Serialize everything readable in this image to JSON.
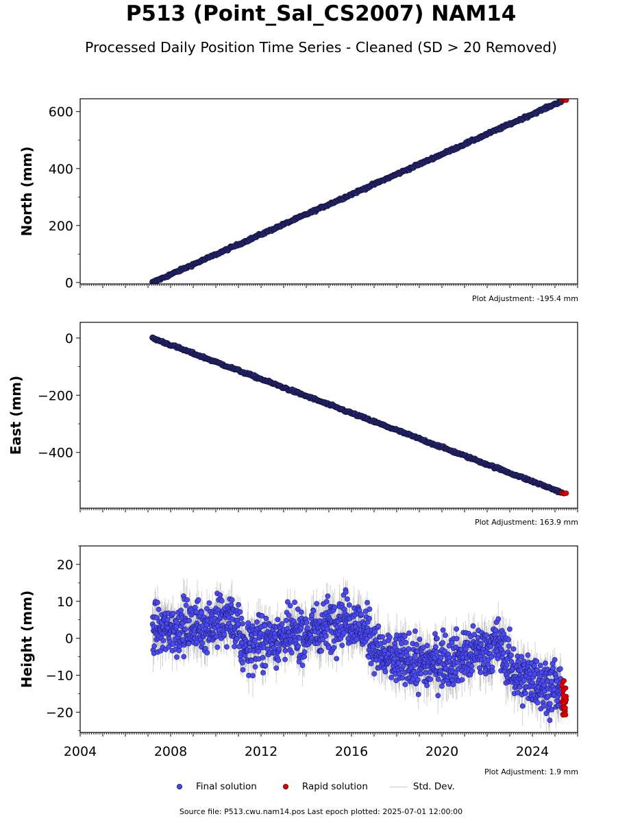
{
  "title": "P513 (Point_Sal_CS2007) NAM14",
  "subtitle": "Processed Daily Position Time Series - Cleaned (SD > 20 Removed)",
  "chart_data": [
    {
      "type": "scatter",
      "ylabel": "North (mm)",
      "xlim": [
        2004.0,
        2026.0
      ],
      "ylim": [
        -5,
        645
      ],
      "y_ticks": [
        0,
        200,
        400,
        600
      ],
      "y_tick_labels": [
        "0",
        "200",
        "400",
        "600"
      ],
      "x_tick_labels_shown": false,
      "adjustment_label": "Plot Adjustment: -195.4 mm",
      "final_solution": {
        "start": [
          2007.2,
          0
        ],
        "end": [
          2025.3,
          637
        ],
        "noise_mm": 2
      },
      "rapid_solution": {
        "x_range": [
          2025.3,
          2025.5
        ],
        "y": 641
      }
    },
    {
      "type": "scatter",
      "ylabel": "East (mm)",
      "xlim": [
        2004.0,
        2026.0
      ],
      "ylim": [
        -595,
        55
      ],
      "y_ticks": [
        0,
        -200,
        -400
      ],
      "y_tick_labels": [
        "0",
        "−200",
        "−400"
      ],
      "x_tick_labels_shown": false,
      "adjustment_label": "Plot Adjustment: 163.9 mm",
      "final_solution": {
        "start": [
          2007.2,
          0
        ],
        "end": [
          2025.3,
          -540
        ],
        "noise_mm": 2
      },
      "rapid_solution": {
        "x_range": [
          2025.3,
          2025.5
        ],
        "y": -543
      }
    },
    {
      "type": "scatter",
      "ylabel": "Height (mm)",
      "xlim": [
        2004.0,
        2026.0
      ],
      "ylim": [
        -25.5,
        25
      ],
      "y_ticks": [
        20,
        10,
        0,
        -10,
        -20
      ],
      "y_tick_labels": [
        "20",
        "10",
        "0",
        "−10",
        "−20"
      ],
      "x_ticks": [
        2004,
        2008,
        2012,
        2016,
        2020,
        2024
      ],
      "x_tick_labels": [
        "2004",
        "2008",
        "2012",
        "2016",
        "2020",
        "2024"
      ],
      "x_tick_labels_shown": true,
      "adjustment_label": "Plot Adjustment: 1.9 mm",
      "trend_nodes": [
        [
          2007.2,
          2
        ],
        [
          2009.0,
          3
        ],
        [
          2010.7,
          5
        ],
        [
          2011.2,
          -2
        ],
        [
          2012.5,
          0
        ],
        [
          2014.0,
          1
        ],
        [
          2015.7,
          6
        ],
        [
          2016.8,
          1
        ],
        [
          2017.3,
          -5
        ],
        [
          2019.0,
          -7
        ],
        [
          2021.0,
          -5
        ],
        [
          2022.5,
          -2
        ],
        [
          2023.3,
          -10
        ],
        [
          2025.3,
          -14
        ]
      ],
      "noise_mm": 3.5,
      "std_dev_mm": [
        2,
        6
      ],
      "rapid_solution": {
        "x_range": [
          2025.3,
          2025.5
        ],
        "y_range": [
          -21,
          -11
        ]
      }
    }
  ],
  "legend": {
    "final": "Final solution",
    "rapid": "Rapid solution",
    "std": "Std. Dev."
  },
  "colors": {
    "final_fill": "#4a4af0",
    "final_edge": "#1a1a70",
    "rapid_fill": "#e00000",
    "rapid_edge": "#700000",
    "std_dev": "#555555"
  },
  "source": "Source file: P513.cwu.nam14.pos  Last epoch plotted: 2025-07-01 12:00:00"
}
